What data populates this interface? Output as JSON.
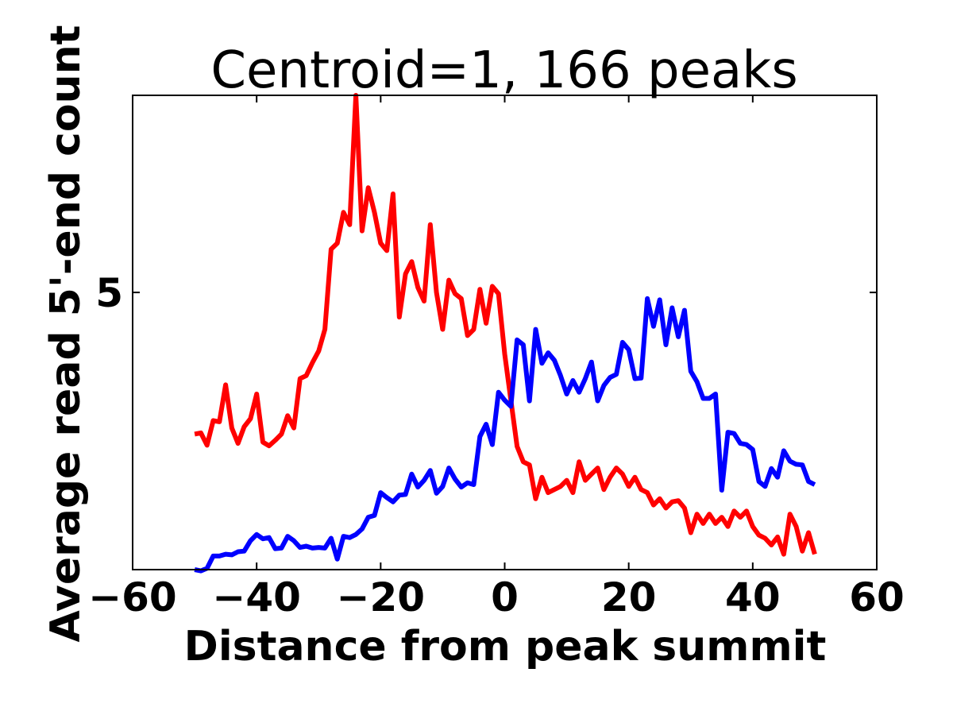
{
  "chart_data": {
    "type": "line",
    "title": "Centroid=1, 166 peaks",
    "xlabel": "Distance from peak summit",
    "ylabel": "Average read 5'-end count",
    "xlim": [
      -60,
      60
    ],
    "ylim": [
      0.5,
      8.2
    ],
    "x_ticks": [
      "−60",
      "−40",
      "−20",
      "0",
      "20",
      "40",
      "60"
    ],
    "y_ticks": [
      "5"
    ],
    "grid": false,
    "x": [
      -50,
      -49,
      -48,
      -47,
      -46,
      -45,
      -44,
      -43,
      -42,
      -41,
      -40,
      -39,
      -38,
      -37,
      -36,
      -35,
      -34,
      -33,
      -32,
      -31,
      -30,
      -29,
      -28,
      -27,
      -26,
      -25,
      -24,
      -23,
      -22,
      -21,
      -20,
      -19,
      -18,
      -17,
      -16,
      -15,
      -14,
      -13,
      -12,
      -11,
      -10,
      -9,
      -8,
      -7,
      -6,
      -5,
      -4,
      -3,
      -2,
      -1,
      0,
      1,
      2,
      3,
      4,
      5,
      6,
      7,
      8,
      9,
      10,
      11,
      12,
      13,
      14,
      15,
      16,
      17,
      18,
      19,
      20,
      21,
      22,
      23,
      24,
      25,
      26,
      27,
      28,
      29,
      30,
      31,
      32,
      33,
      34,
      35,
      36,
      37,
      38,
      39,
      40,
      41,
      42,
      43,
      44,
      45,
      46,
      47,
      48,
      49,
      50
    ],
    "series": [
      {
        "color": "#ff0000",
        "values": [
          2.7,
          2.72,
          2.52,
          2.92,
          2.9,
          3.5,
          2.8,
          2.55,
          2.82,
          2.95,
          3.35,
          2.57,
          2.51,
          2.6,
          2.7,
          3.0,
          2.8,
          3.6,
          3.65,
          3.86,
          4.05,
          4.4,
          5.7,
          5.8,
          6.3,
          6.1,
          8.2,
          6.0,
          6.7,
          6.3,
          5.8,
          5.68,
          6.6,
          4.6,
          5.3,
          5.5,
          5.08,
          4.86,
          6.1,
          5.0,
          4.4,
          5.2,
          4.98,
          4.9,
          4.3,
          4.4,
          5.05,
          4.5,
          5.1,
          4.98,
          4.0,
          3.25,
          2.5,
          2.25,
          2.2,
          1.65,
          2.0,
          1.75,
          1.8,
          1.85,
          1.95,
          1.75,
          2.25,
          1.95,
          2.05,
          2.15,
          1.8,
          2.0,
          2.15,
          2.05,
          1.85,
          2.0,
          1.8,
          1.75,
          1.55,
          1.65,
          1.5,
          1.6,
          1.62,
          1.5,
          1.1,
          1.4,
          1.25,
          1.4,
          1.25,
          1.35,
          1.2,
          1.45,
          1.35,
          1.45,
          1.2,
          1.06,
          1.01,
          0.9,
          1.03,
          0.75,
          1.4,
          1.2,
          0.8,
          1.1,
          0.75
        ]
      },
      {
        "color": "#0000ff",
        "values": [
          0.5,
          0.48,
          0.52,
          0.72,
          0.72,
          0.75,
          0.74,
          0.79,
          0.8,
          0.97,
          1.07,
          1.0,
          1.02,
          0.84,
          0.85,
          1.04,
          0.97,
          0.86,
          0.88,
          0.85,
          0.86,
          0.85,
          1.01,
          0.67,
          1.04,
          1.02,
          1.07,
          1.16,
          1.35,
          1.38,
          1.75,
          1.67,
          1.6,
          1.71,
          1.72,
          2.05,
          1.84,
          1.95,
          2.11,
          1.74,
          1.85,
          2.15,
          1.97,
          1.84,
          1.91,
          1.88,
          2.66,
          2.86,
          2.53,
          3.38,
          3.25,
          3.15,
          4.23,
          4.15,
          3.24,
          4.4,
          3.85,
          4.02,
          3.9,
          3.65,
          3.35,
          3.57,
          3.38,
          3.6,
          3.87,
          3.24,
          3.49,
          3.62,
          3.67,
          4.19,
          4.07,
          3.6,
          3.61,
          4.9,
          4.45,
          4.88,
          4.15,
          4.75,
          4.28,
          4.71,
          3.72,
          3.55,
          3.28,
          3.28,
          3.35,
          1.79,
          2.73,
          2.71,
          2.55,
          2.53,
          2.45,
          1.93,
          1.85,
          2.14,
          2.0,
          2.43,
          2.26,
          2.21,
          2.2,
          1.93,
          1.88
        ]
      }
    ]
  }
}
